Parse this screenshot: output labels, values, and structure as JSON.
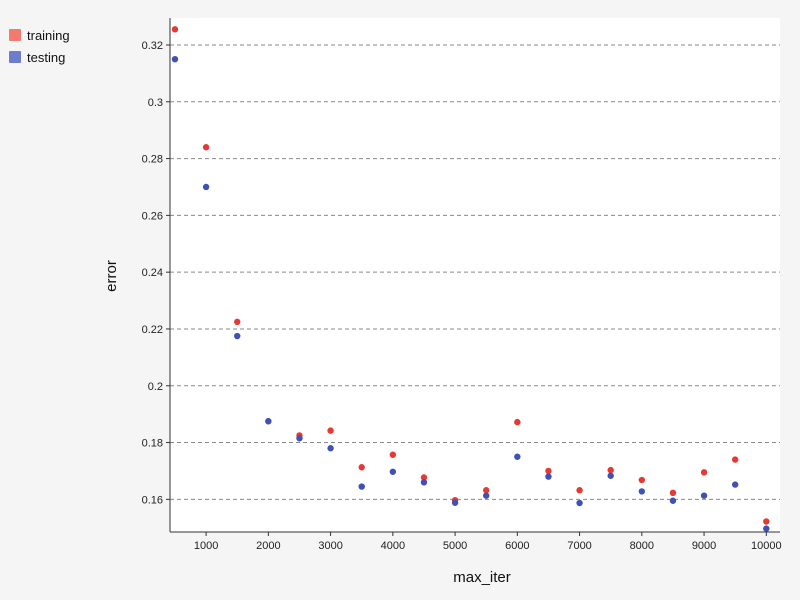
{
  "chart_data": {
    "type": "scatter",
    "xlabel": "max_iter",
    "ylabel": "error",
    "xlim": [
      420,
      10220
    ],
    "ylim": [
      0.1485,
      0.3295
    ],
    "grid": "horizontal-dashed",
    "legend_position": "top-left",
    "x_ticks": [
      1000,
      2000,
      3000,
      4000,
      5000,
      6000,
      7000,
      8000,
      9000,
      10000
    ],
    "x_tick_labels": [
      "1000",
      "2000",
      "3000",
      "4000",
      "5000",
      "6000",
      "7000",
      "8000",
      "9000",
      "10000"
    ],
    "y_ticks": [
      0.16,
      0.18,
      0.2,
      0.22,
      0.24,
      0.26,
      0.28,
      0.3,
      0.32
    ],
    "y_tick_labels": [
      "0.16",
      "0.18",
      "0.2",
      "0.22",
      "0.24",
      "0.26",
      "0.28",
      "0.3",
      "0.32"
    ],
    "x": [
      500,
      1000,
      1500,
      2000,
      2500,
      3000,
      3500,
      4000,
      4500,
      5000,
      5500,
      6000,
      6500,
      7000,
      7500,
      8000,
      8500,
      9000,
      9500,
      10000
    ],
    "series": [
      {
        "name": "training",
        "color": "#e53935",
        "legend_color": "#f27a6e",
        "values": [
          0.3255,
          0.284,
          0.2225,
          0.1875,
          0.1825,
          0.1842,
          0.1713,
          0.1757,
          0.1677,
          0.1597,
          0.1632,
          0.1872,
          0.17,
          0.1632,
          0.1703,
          0.1668,
          0.1623,
          0.1695,
          0.174,
          0.1522
        ]
      },
      {
        "name": "testing",
        "color": "#3f51b5",
        "legend_color": "#6d7ccc",
        "values": [
          0.315,
          0.27,
          0.2175,
          0.1875,
          0.1815,
          0.178,
          0.1645,
          0.1697,
          0.166,
          0.1588,
          0.1613,
          0.175,
          0.168,
          0.1587,
          0.1683,
          0.1628,
          0.1595,
          0.1613,
          0.1652,
          0.1497
        ]
      }
    ]
  }
}
